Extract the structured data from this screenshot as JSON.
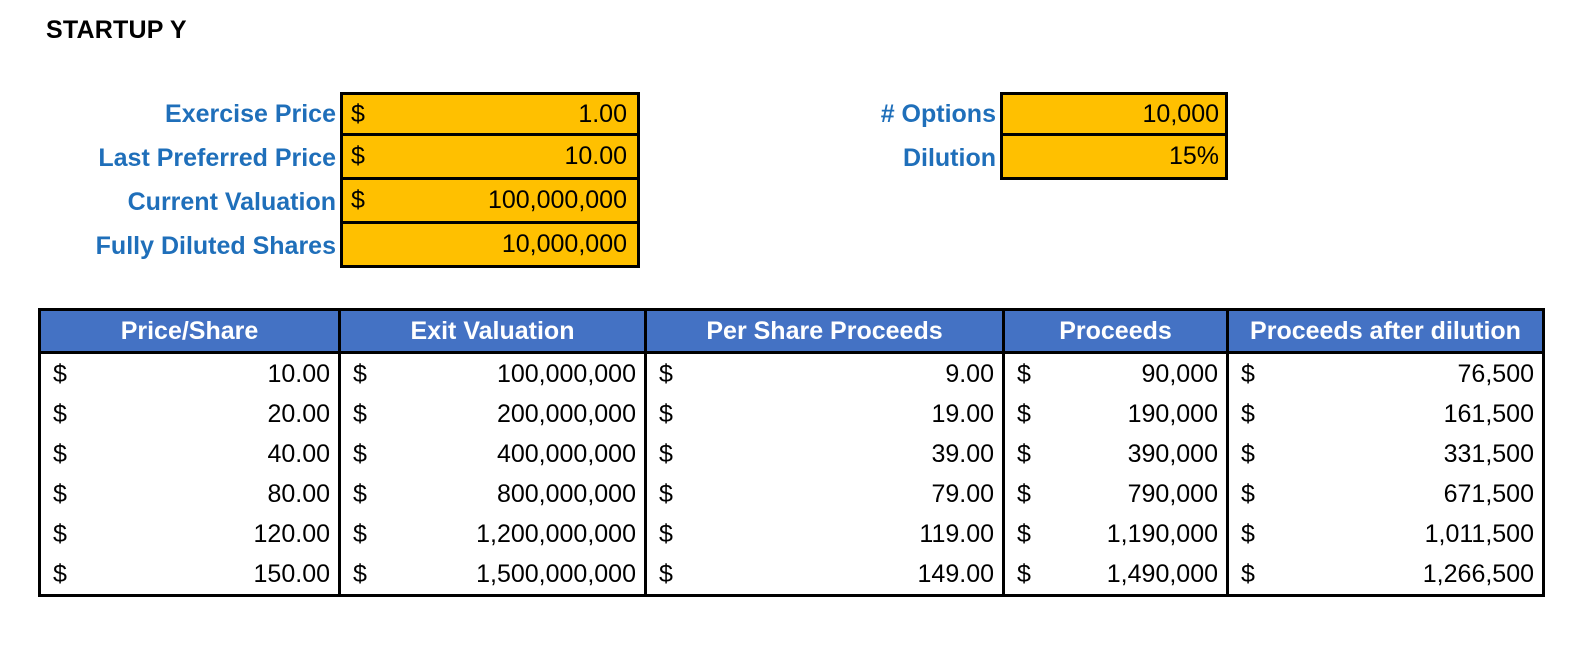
{
  "title": "STARTUP Y",
  "inputs_left": [
    {
      "label": "Exercise Price",
      "currency": "$",
      "value": "1.00"
    },
    {
      "label": "Last Preferred Price",
      "currency": "$",
      "value": "10.00"
    },
    {
      "label": "Current Valuation",
      "currency": "$",
      "value": "100,000,000"
    },
    {
      "label": "Fully Diluted Shares",
      "currency": "",
      "value": "10,000,000"
    }
  ],
  "inputs_right": [
    {
      "label": "# Options",
      "value": "10,000"
    },
    {
      "label": "Dilution",
      "value": "15%"
    }
  ],
  "table": {
    "headers": [
      "Price/Share",
      "Exit Valuation",
      "Per Share Proceeds",
      "Proceeds",
      "Proceeds after dilution"
    ],
    "currency": "$",
    "rows": [
      [
        "10.00",
        "100,000,000",
        "9.00",
        "90,000",
        "76,500"
      ],
      [
        "20.00",
        "200,000,000",
        "19.00",
        "190,000",
        "161,500"
      ],
      [
        "40.00",
        "400,000,000",
        "39.00",
        "390,000",
        "331,500"
      ],
      [
        "80.00",
        "800,000,000",
        "79.00",
        "790,000",
        "671,500"
      ],
      [
        "120.00",
        "1,200,000,000",
        "119.00",
        "1,190,000",
        "1,011,500"
      ],
      [
        "150.00",
        "1,500,000,000",
        "149.00",
        "1,490,000",
        "1,266,500"
      ]
    ]
  },
  "colors": {
    "input_fill": "#ffc000",
    "label_text": "#1f6fba",
    "header_fill": "#4472c4"
  }
}
